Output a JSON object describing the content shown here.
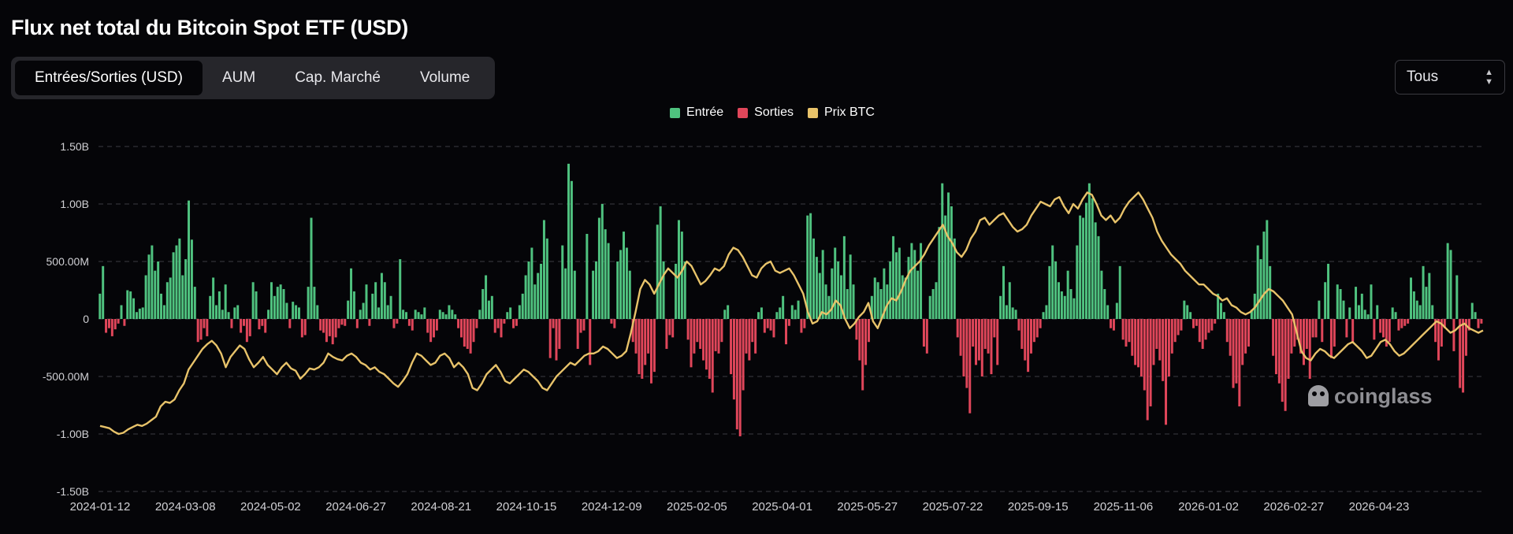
{
  "title": "Flux net total du Bitcoin Spot ETF (USD)",
  "tabs": [
    {
      "label": "Entrées/Sorties (USD)",
      "active": true
    },
    {
      "label": "AUM",
      "active": false
    },
    {
      "label": "Cap. Marché",
      "active": false
    },
    {
      "label": "Volume",
      "active": false
    }
  ],
  "range_select": {
    "value": "Tous",
    "icon": "chevron-up-down-icon"
  },
  "legend": [
    {
      "label": "Entrée",
      "color": "#4fc27f"
    },
    {
      "label": "Sorties",
      "color": "#e0465a"
    },
    {
      "label": "Prix BTC",
      "color": "#e8c36a"
    }
  ],
  "watermark": {
    "text": "coinglass",
    "icon": "coinglass-logo-icon"
  },
  "chart_data": {
    "type": "bar",
    "y_tick_labels": [
      "1.50B",
      "1.00B",
      "500.00M",
      "0",
      "-500.00M",
      "-1.00B",
      "-1.50B"
    ],
    "y_tick_values": [
      1500,
      1000,
      500,
      0,
      -500,
      -1000,
      -1500
    ],
    "ylim": [
      -1500,
      1500
    ],
    "y_unit": "M USD",
    "x_tick_labels": [
      "2024-01-12",
      "2024-03-08",
      "2024-05-02",
      "2024-06-27",
      "2024-08-21",
      "2024-10-15",
      "2024-12-09",
      "2025-02-05",
      "2025-04-01",
      "2025-05-27",
      "2025-07-22",
      "2025-09-15",
      "2025-11-06",
      "2026-01-02",
      "2026-02-27",
      "2026-04-23"
    ],
    "grid": "horizontal dashed",
    "legend_position": "top-center",
    "series": [
      {
        "name": "Entrée / Sorties",
        "kind": "bar",
        "values": [
          220,
          460,
          -120,
          -80,
          -150,
          -90,
          -40,
          120,
          -60,
          250,
          240,
          180,
          60,
          90,
          100,
          380,
          560,
          640,
          420,
          500,
          220,
          120,
          320,
          360,
          580,
          640,
          700,
          380,
          520,
          1030,
          690,
          280,
          -200,
          -180,
          -80,
          -150,
          200,
          360,
          120,
          240,
          80,
          300,
          60,
          -80,
          100,
          120,
          -120,
          -60,
          -200,
          -150,
          320,
          240,
          -90,
          -60,
          -120,
          80,
          320,
          200,
          280,
          300,
          260,
          140,
          -80,
          150,
          120,
          100,
          -160,
          -140,
          280,
          880,
          280,
          120,
          -100,
          -120,
          -200,
          -150,
          -220,
          -160,
          -80,
          -50,
          -60,
          160,
          440,
          240,
          -80,
          80,
          140,
          300,
          -60,
          220,
          320,
          100,
          400,
          320,
          120,
          200,
          -80,
          -40,
          520,
          80,
          60,
          -60,
          -100,
          80,
          60,
          40,
          100,
          -120,
          -200,
          -160,
          -100,
          80,
          60,
          40,
          120,
          80,
          40,
          -80,
          -160,
          -240,
          -260,
          -300,
          -200,
          -80,
          80,
          260,
          380,
          160,
          200,
          -120,
          -80,
          -160,
          -40,
          60,
          100,
          -80,
          -60,
          120,
          220,
          380,
          500,
          620,
          300,
          400,
          480,
          860,
          700,
          -340,
          -80,
          -360,
          -260,
          640,
          440,
          1350,
          1200,
          420,
          -260,
          -120,
          -100,
          740,
          -400,
          420,
          500,
          880,
          1000,
          780,
          660,
          -40,
          -80,
          500,
          600,
          760,
          620,
          420,
          -200,
          -300,
          -480,
          -520,
          -400,
          -300,
          -560,
          -460,
          820,
          980,
          500,
          -260,
          -140,
          -160,
          480,
          860,
          760,
          500,
          -180,
          -420,
          -300,
          -200,
          -260,
          -360,
          -440,
          -520,
          -640,
          -280,
          -300,
          -200,
          80,
          120,
          -480,
          -700,
          -960,
          -1020,
          -620,
          -300,
          -360,
          -200,
          -300,
          60,
          100,
          -120,
          -80,
          -100,
          -160,
          60,
          100,
          200,
          -220,
          -60,
          120,
          80,
          160,
          -120,
          -80,
          900,
          920,
          700,
          540,
          400,
          600,
          300,
          200,
          440,
          620,
          500,
          380,
          720,
          260,
          560,
          300,
          -180,
          -360,
          -620,
          -400,
          -200,
          200,
          360,
          320,
          260,
          440,
          300,
          500,
          720,
          580,
          620,
          380,
          360,
          540,
          660,
          600,
          420,
          660,
          -240,
          -300,
          200,
          260,
          320,
          800,
          1180,
          900,
          1100,
          980,
          700,
          -160,
          -320,
          -500,
          -600,
          -820,
          -240,
          -400,
          -360,
          -500,
          -260,
          -300,
          -480,
          -160,
          -400,
          200,
          460,
          120,
          320,
          100,
          80,
          -100,
          -260,
          -360,
          -460,
          -300,
          -200,
          -160,
          -80,
          60,
          120,
          460,
          640,
          500,
          320,
          240,
          200,
          420,
          260,
          180,
          640,
          900,
          880,
          1010,
          1180,
          1050,
          840,
          720,
          420,
          260,
          120,
          -80,
          -100,
          140,
          460,
          -180,
          -240,
          -200,
          -320,
          -400,
          -420,
          -500,
          -620,
          -880,
          -760,
          -400,
          -260,
          -360,
          -540,
          -920,
          -500,
          -300,
          -200,
          -140,
          -100,
          160,
          120,
          60,
          -80,
          -60,
          -200,
          -260,
          -180,
          -120,
          -100,
          -40,
          220,
          140,
          60,
          -200,
          -320,
          -600,
          -560,
          -760,
          -400,
          -300,
          -240,
          80,
          220,
          640,
          520,
          760,
          860,
          460,
          -320,
          -480,
          -560,
          -720,
          -800,
          -520,
          -300,
          -240,
          -180,
          -300,
          -400,
          -260,
          -520,
          -160,
          -160,
          160,
          -200,
          320,
          480,
          -340,
          -240,
          300,
          260,
          160,
          -160,
          100,
          -200,
          280,
          120,
          220,
          80,
          40,
          300,
          -180,
          120,
          -120,
          -160,
          -240,
          -200,
          100,
          60,
          -100,
          -80,
          -60,
          -40,
          360,
          240,
          160,
          120,
          460,
          280,
          400,
          120,
          -200,
          -360,
          -240,
          -80,
          660,
          600,
          -280,
          380,
          -600,
          -640,
          -320,
          -100,
          140,
          60,
          -80,
          -40
        ],
        "color_positive": "#4fc27f",
        "color_negative": "#e0465a"
      },
      {
        "name": "Prix BTC",
        "kind": "line",
        "color": "#e8c36a",
        "axis_scale": "same pixel frame, normalized to flow axis",
        "values": [
          -930,
          -940,
          -950,
          -980,
          -1000,
          -990,
          -960,
          -940,
          -920,
          -930,
          -910,
          -880,
          -850,
          -760,
          -720,
          -730,
          -700,
          -620,
          -560,
          -440,
          -380,
          -320,
          -260,
          -220,
          -190,
          -230,
          -300,
          -420,
          -330,
          -280,
          -230,
          -260,
          -350,
          -420,
          -380,
          -330,
          -400,
          -440,
          -480,
          -420,
          -380,
          -430,
          -450,
          -520,
          -480,
          -430,
          -440,
          -420,
          -380,
          -300,
          -330,
          -350,
          -360,
          -320,
          -300,
          -330,
          -380,
          -400,
          -440,
          -420,
          -460,
          -480,
          -520,
          -560,
          -590,
          -540,
          -480,
          -380,
          -300,
          -320,
          -360,
          -400,
          -380,
          -320,
          -300,
          -340,
          -420,
          -380,
          -420,
          -480,
          -600,
          -620,
          -560,
          -480,
          -440,
          -400,
          -460,
          -540,
          -560,
          -520,
          -480,
          -440,
          -460,
          -500,
          -540,
          -600,
          -620,
          -560,
          -500,
          -460,
          -420,
          -380,
          -400,
          -360,
          -320,
          -300,
          -300,
          -280,
          -240,
          -260,
          -300,
          -340,
          -320,
          -280,
          -120,
          60,
          260,
          340,
          300,
          220,
          300,
          380,
          440,
          400,
          360,
          420,
          500,
          460,
          380,
          300,
          330,
          380,
          440,
          420,
          460,
          560,
          620,
          600,
          540,
          460,
          380,
          360,
          440,
          480,
          500,
          420,
          400,
          420,
          440,
          380,
          300,
          220,
          60,
          -40,
          -20,
          60,
          40,
          80,
          160,
          120,
          0,
          -80,
          -40,
          20,
          60,
          140,
          -20,
          -80,
          20,
          120,
          180,
          160,
          240,
          340,
          420,
          460,
          500,
          560,
          640,
          700,
          760,
          820,
          720,
          660,
          580,
          540,
          600,
          700,
          760,
          860,
          880,
          820,
          860,
          900,
          920,
          860,
          800,
          760,
          780,
          820,
          900,
          960,
          1020,
          1000,
          980,
          1040,
          1060,
          980,
          920,
          1000,
          960,
          1040,
          1100,
          1080,
          1000,
          900,
          860,
          900,
          840,
          880,
          960,
          1020,
          1060,
          1100,
          1040,
          960,
          880,
          760,
          680,
          620,
          560,
          520,
          480,
          420,
          380,
          340,
          300,
          300,
          260,
          220,
          200,
          160,
          180,
          120,
          100,
          60,
          40,
          60,
          100,
          160,
          220,
          260,
          240,
          200,
          160,
          100,
          40,
          -120,
          -280,
          -340,
          -360,
          -300,
          -260,
          -280,
          -320,
          -340,
          -300,
          -260,
          -220,
          -200,
          -240,
          -280,
          -340,
          -320,
          -260,
          -200,
          -180,
          -220,
          -280,
          -320,
          -300,
          -260,
          -220,
          -180,
          -140,
          -100,
          -60,
          -20,
          -40,
          -80,
          -120,
          -100,
          -60,
          -40,
          -80,
          -100,
          -120,
          -100
        ]
      }
    ]
  }
}
